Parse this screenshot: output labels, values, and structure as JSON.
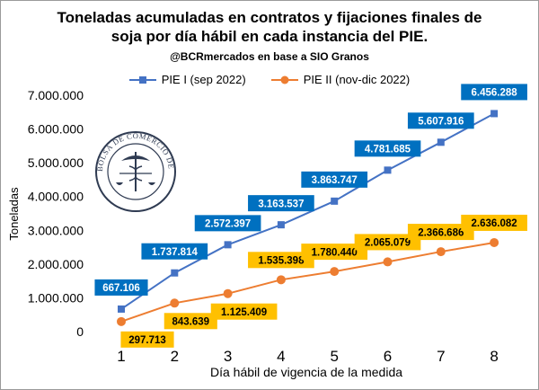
{
  "chart_data": {
    "type": "line",
    "title_line1": "Toneladas acumuladas en contratos y fijaciones finales de",
    "title_line2": "soja por día hábil en cada instancia del PIE.",
    "subtitle": "@BCRmercados en base a SIO Granos",
    "xlabel": "Día hábil de vigencia de la medida",
    "ylabel": "Toneladas",
    "x": [
      1,
      2,
      3,
      4,
      5,
      6,
      7,
      8
    ],
    "x_tick_labels": [
      "1",
      "2",
      "3",
      "4",
      "5",
      "6",
      "7",
      "8"
    ],
    "ylim": [
      0,
      7000000
    ],
    "y_ticks": [
      0,
      1000000,
      2000000,
      3000000,
      4000000,
      5000000,
      6000000,
      7000000
    ],
    "y_tick_labels": [
      "0",
      "1.000.000",
      "2.000.000",
      "3.000.000",
      "4.000.000",
      "5.000.000",
      "6.000.000",
      "7.000.000"
    ],
    "grid": false,
    "legend_placement": "top-center",
    "series": [
      {
        "name": "PIE I (sep 2022)",
        "marker": "square",
        "color": "#4472C4",
        "label_bg": "#0070C0",
        "label_color": "#FFFFFF",
        "values": [
          667106,
          1737814,
          2572397,
          3163537,
          3863747,
          4781685,
          5607916,
          6456288
        ],
        "labels": [
          "667.106",
          "1.737.814",
          "2.572.397",
          "3.163.537",
          "3.863.747",
          "4.781.685",
          "5.607.916",
          "6.456.288"
        ]
      },
      {
        "name": "PIE II (nov-dic 2022)",
        "marker": "circle",
        "color": "#ED7D31",
        "label_bg": "#FFC000",
        "label_color": "#000000",
        "values": [
          297713,
          843639,
          1125409,
          1535398,
          1780440,
          2065079,
          2366686,
          2636082
        ],
        "labels": [
          "297.713",
          "843.639",
          "1.125.409",
          "1.535.398",
          "1.780.440",
          "2.065.079",
          "2.366.686",
          "2.636.082"
        ]
      }
    ],
    "logo_text": "BOLSA DE COMERCIO DE ROSARIO"
  }
}
